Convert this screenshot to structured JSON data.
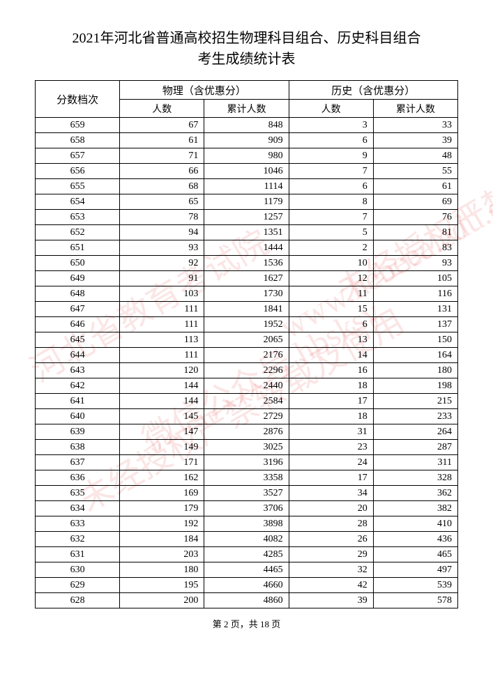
{
  "title_line1": "2021年河北省普通高校招生物理科目组合、历史科目组合",
  "title_line2": "考生成绩统计表",
  "header": {
    "score_level": "分数档次",
    "physics": "物理（含优惠分）",
    "history": "历史（含优惠分）",
    "count": "人数",
    "cumulative": "累计人数"
  },
  "rows": [
    {
      "score": "659",
      "p_count": "67",
      "p_cum": "848",
      "h_count": "3",
      "h_cum": "33"
    },
    {
      "score": "658",
      "p_count": "61",
      "p_cum": "909",
      "h_count": "6",
      "h_cum": "39"
    },
    {
      "score": "657",
      "p_count": "71",
      "p_cum": "980",
      "h_count": "9",
      "h_cum": "48"
    },
    {
      "score": "656",
      "p_count": "66",
      "p_cum": "1046",
      "h_count": "7",
      "h_cum": "55"
    },
    {
      "score": "655",
      "p_count": "68",
      "p_cum": "1114",
      "h_count": "6",
      "h_cum": "61"
    },
    {
      "score": "654",
      "p_count": "65",
      "p_cum": "1179",
      "h_count": "8",
      "h_cum": "69"
    },
    {
      "score": "653",
      "p_count": "78",
      "p_cum": "1257",
      "h_count": "7",
      "h_cum": "76"
    },
    {
      "score": "652",
      "p_count": "94",
      "p_cum": "1351",
      "h_count": "5",
      "h_cum": "81"
    },
    {
      "score": "651",
      "p_count": "93",
      "p_cum": "1444",
      "h_count": "2",
      "h_cum": "83"
    },
    {
      "score": "650",
      "p_count": "92",
      "p_cum": "1536",
      "h_count": "10",
      "h_cum": "93"
    },
    {
      "score": "649",
      "p_count": "91",
      "p_cum": "1627",
      "h_count": "12",
      "h_cum": "105"
    },
    {
      "score": "648",
      "p_count": "103",
      "p_cum": "1730",
      "h_count": "11",
      "h_cum": "116"
    },
    {
      "score": "647",
      "p_count": "111",
      "p_cum": "1841",
      "h_count": "15",
      "h_cum": "131"
    },
    {
      "score": "646",
      "p_count": "111",
      "p_cum": "1952",
      "h_count": "6",
      "h_cum": "137"
    },
    {
      "score": "645",
      "p_count": "113",
      "p_cum": "2065",
      "h_count": "13",
      "h_cum": "150"
    },
    {
      "score": "644",
      "p_count": "111",
      "p_cum": "2176",
      "h_count": "14",
      "h_cum": "164"
    },
    {
      "score": "643",
      "p_count": "120",
      "p_cum": "2296",
      "h_count": "16",
      "h_cum": "180"
    },
    {
      "score": "642",
      "p_count": "144",
      "p_cum": "2440",
      "h_count": "18",
      "h_cum": "198"
    },
    {
      "score": "641",
      "p_count": "144",
      "p_cum": "2584",
      "h_count": "17",
      "h_cum": "215"
    },
    {
      "score": "640",
      "p_count": "145",
      "p_cum": "2729",
      "h_count": "18",
      "h_cum": "233"
    },
    {
      "score": "639",
      "p_count": "147",
      "p_cum": "2876",
      "h_count": "31",
      "h_cum": "264"
    },
    {
      "score": "638",
      "p_count": "149",
      "p_cum": "3025",
      "h_count": "23",
      "h_cum": "287"
    },
    {
      "score": "637",
      "p_count": "171",
      "p_cum": "3196",
      "h_count": "24",
      "h_cum": "311"
    },
    {
      "score": "636",
      "p_count": "162",
      "p_cum": "3358",
      "h_count": "17",
      "h_cum": "328"
    },
    {
      "score": "635",
      "p_count": "169",
      "p_cum": "3527",
      "h_count": "34",
      "h_cum": "362"
    },
    {
      "score": "634",
      "p_count": "179",
      "p_cum": "3706",
      "h_count": "20",
      "h_cum": "382"
    },
    {
      "score": "633",
      "p_count": "192",
      "p_cum": "3898",
      "h_count": "28",
      "h_cum": "410"
    },
    {
      "score": "632",
      "p_count": "184",
      "p_cum": "4082",
      "h_count": "26",
      "h_cum": "436"
    },
    {
      "score": "631",
      "p_count": "203",
      "p_cum": "4285",
      "h_count": "29",
      "h_cum": "465"
    },
    {
      "score": "630",
      "p_count": "180",
      "p_cum": "4465",
      "h_count": "32",
      "h_cum": "497"
    },
    {
      "score": "629",
      "p_count": "195",
      "p_cum": "4660",
      "h_count": "42",
      "h_cum": "539"
    },
    {
      "score": "628",
      "p_count": "200",
      "p_cum": "4860",
      "h_count": "39",
      "h_cum": "578"
    }
  ],
  "footer": "第 2 页，共 18 页",
  "watermarks": {
    "text1": "河北省教育考试院",
    "text2": "www.hebeea.edu.cn",
    "text3": "未经授权严禁转载及使用",
    "text4": "微信公众号 hbsksy"
  }
}
